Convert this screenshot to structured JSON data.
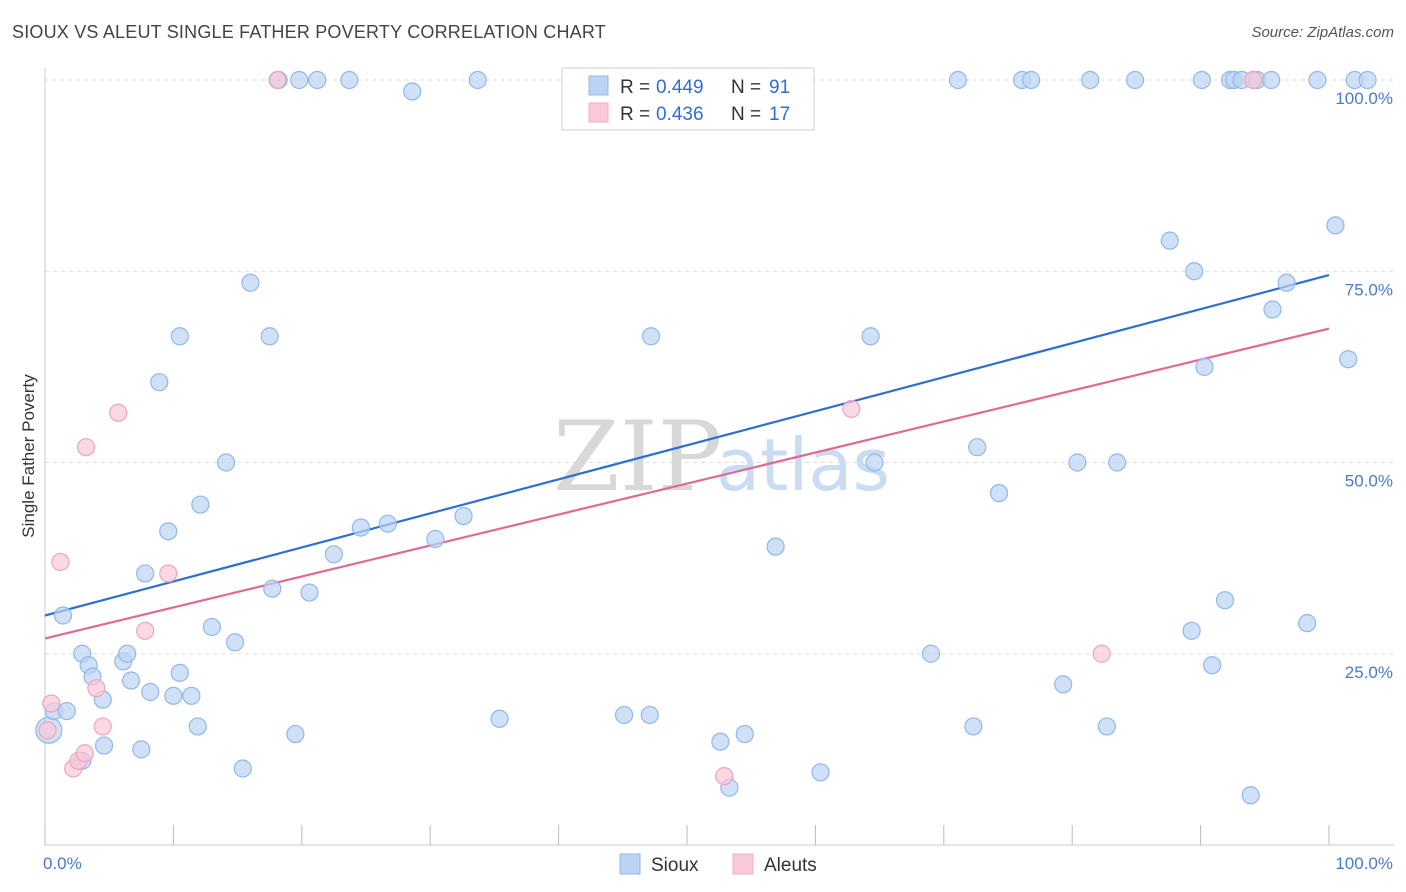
{
  "header": {
    "title": "SIOUX VS ALEUT SINGLE FATHER POVERTY CORRELATION CHART",
    "source": "Source: ZipAtlas.com"
  },
  "watermark": {
    "zip": "ZIP",
    "atlas": "atlas"
  },
  "legend": {
    "rows": [
      {
        "r_label": "R =",
        "r_value": "0.449",
        "n_label": "N =",
        "n_value": "91",
        "color": "#8fb8ec"
      },
      {
        "r_label": "R =",
        "r_value": "0.436",
        "n_label": "N =",
        "n_value": "17",
        "color": "#f5aec4"
      }
    ]
  },
  "bottom_legend": [
    {
      "label": "Sioux",
      "color": "#8fb8ec"
    },
    {
      "label": "Aleuts",
      "color": "#f5aec4"
    }
  ],
  "chart_data": {
    "type": "scatter",
    "title": "SIOUX VS ALEUT SINGLE FATHER POVERTY CORRELATION CHART",
    "xlabel": "",
    "ylabel": "Single Father Poverty",
    "xlim": [
      0,
      100
    ],
    "ylim": [
      0,
      100
    ],
    "x_tick_labels": [
      "0.0%",
      "100.0%"
    ],
    "y_tick_labels": [
      {
        "value": 25,
        "label": "25.0%"
      },
      {
        "value": 50,
        "label": "50.0%"
      },
      {
        "value": 75,
        "label": "75.0%"
      },
      {
        "value": 100,
        "label": "100.0%"
      }
    ],
    "grid": true,
    "legend_position": "top-center",
    "colors": {
      "sioux": "#2f6fd0",
      "sioux_fill": "#bcd4f3",
      "aleuts": "#e06a95",
      "aleuts_fill": "#f8c9d8"
    },
    "series": [
      {
        "name": "Sioux",
        "trend": {
          "x": [
            0,
            100
          ],
          "y": [
            30,
            74.5
          ]
        },
        "points": [
          [
            0.3,
            15
          ],
          [
            0.7,
            17.5
          ],
          [
            1.7,
            17.5
          ],
          [
            1.4,
            30
          ],
          [
            2.9,
            11
          ],
          [
            2.9,
            25
          ],
          [
            3.4,
            23.5
          ],
          [
            3.7,
            22
          ],
          [
            4.5,
            19
          ],
          [
            4.6,
            13
          ],
          [
            6.1,
            24
          ],
          [
            6.4,
            25
          ],
          [
            6.7,
            21.5
          ],
          [
            7.5,
            12.5
          ],
          [
            7.8,
            35.5
          ],
          [
            8.2,
            20
          ],
          [
            8.9,
            60.5
          ],
          [
            9.6,
            41
          ],
          [
            10.0,
            19.5
          ],
          [
            10.5,
            66.5
          ],
          [
            10.5,
            22.5
          ],
          [
            11.4,
            19.5
          ],
          [
            11.9,
            15.5
          ],
          [
            12.1,
            44.5
          ],
          [
            13.0,
            28.5
          ],
          [
            14.1,
            50
          ],
          [
            14.8,
            26.5
          ],
          [
            15.4,
            10
          ],
          [
            16.0,
            73.5
          ],
          [
            17.5,
            66.5
          ],
          [
            17.7,
            33.5
          ],
          [
            18.2,
            100
          ],
          [
            19.8,
            100
          ],
          [
            19.5,
            14.5
          ],
          [
            20.6,
            33
          ],
          [
            21.2,
            100
          ],
          [
            22.5,
            38
          ],
          [
            23.7,
            100
          ],
          [
            24.6,
            41.5
          ],
          [
            26.7,
            42
          ],
          [
            28.6,
            98.5
          ],
          [
            30.4,
            40
          ],
          [
            32.6,
            43
          ],
          [
            33.7,
            100
          ],
          [
            35.4,
            16.5
          ],
          [
            45.1,
            17
          ],
          [
            47.2,
            66.5
          ],
          [
            47.1,
            17
          ],
          [
            50.9,
            100
          ],
          [
            52.6,
            13.5
          ],
          [
            53.3,
            7.5
          ],
          [
            54.5,
            14.5
          ],
          [
            56.9,
            39
          ],
          [
            60.4,
            9.5
          ],
          [
            64.3,
            66.5
          ],
          [
            64.6,
            50
          ],
          [
            69.0,
            25
          ],
          [
            71.1,
            100
          ],
          [
            72.3,
            15.5
          ],
          [
            72.6,
            52
          ],
          [
            74.3,
            46
          ],
          [
            76.1,
            100
          ],
          [
            76.8,
            100
          ],
          [
            79.3,
            21
          ],
          [
            80.4,
            50
          ],
          [
            81.4,
            100
          ],
          [
            82.7,
            15.5
          ],
          [
            83.5,
            50
          ],
          [
            84.9,
            100
          ],
          [
            87.6,
            79
          ],
          [
            89.3,
            28
          ],
          [
            89.5,
            75
          ],
          [
            90.1,
            100
          ],
          [
            90.3,
            62.5
          ],
          [
            90.9,
            23.5
          ],
          [
            91.9,
            32
          ],
          [
            92.3,
            100
          ],
          [
            92.6,
            100
          ],
          [
            93.2,
            100
          ],
          [
            94.1,
            100
          ],
          [
            93.9,
            6.5
          ],
          [
            94.4,
            100
          ],
          [
            95.5,
            100
          ],
          [
            95.6,
            70
          ],
          [
            96.7,
            73.5
          ],
          [
            98.3,
            29
          ],
          [
            99.1,
            100
          ],
          [
            100.5,
            81
          ],
          [
            101.5,
            63.5
          ],
          [
            102.0,
            100
          ],
          [
            103.0,
            100
          ]
        ]
      },
      {
        "name": "Aleuts",
        "trend": {
          "x": [
            0,
            100
          ],
          "y": [
            27,
            67.5
          ]
        },
        "points": [
          [
            0.2,
            15
          ],
          [
            0.5,
            18.5
          ],
          [
            1.2,
            37
          ],
          [
            2.2,
            10
          ],
          [
            2.6,
            11
          ],
          [
            3.1,
            12
          ],
          [
            3.2,
            52
          ],
          [
            4.0,
            20.5
          ],
          [
            4.5,
            15.5
          ],
          [
            5.7,
            56.5
          ],
          [
            7.8,
            28
          ],
          [
            9.6,
            35.5
          ],
          [
            18.1,
            100
          ],
          [
            52.9,
            9
          ],
          [
            62.8,
            57
          ],
          [
            82.3,
            25
          ],
          [
            94.1,
            100
          ]
        ]
      }
    ]
  }
}
